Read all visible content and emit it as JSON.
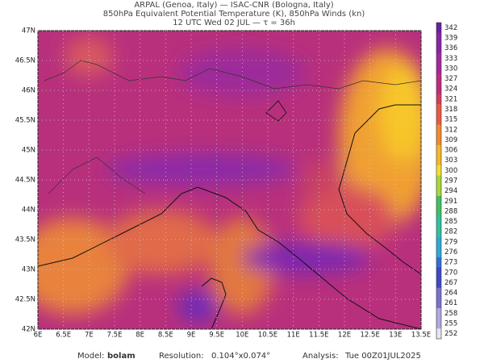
{
  "header": {
    "line1": "ARPAL (Genoa, Italy)  —  ISAC-CNR (Bologna, Italy)",
    "line2": "850hPa Equivalent Potential Temperature (K), 850hPa Winds (kn)",
    "line3": "12 UTC Wed 02 JUL  —  τ = 36h"
  },
  "map": {
    "lat_labels": [
      "47N",
      "46.5N",
      "46N",
      "45.5N",
      "45N",
      "44.5N",
      "44N",
      "43.5N",
      "43N",
      "42.5N",
      "42N"
    ],
    "lon_labels": [
      "6E",
      "6.5E",
      "7E",
      "7.5E",
      "8E",
      "8.5E",
      "9E",
      "9.5E",
      "10E",
      "10.5E",
      "11E",
      "11.5E",
      "12E",
      "12.5E",
      "13E",
      "13.5E"
    ]
  },
  "colorbar": {
    "labels": [
      "342",
      "339",
      "336",
      "333",
      "330",
      "327",
      "324",
      "321",
      "318",
      "315",
      "312",
      "309",
      "306",
      "303",
      "300",
      "297",
      "294",
      "291",
      "288",
      "285",
      "282",
      "279",
      "276",
      "273",
      "270",
      "267",
      "264",
      "261",
      "258",
      "255",
      "252"
    ]
  },
  "footer": {
    "model_label": "Model:",
    "model": "bolam",
    "resolution_label": "Resolution:",
    "resolution": "0.104°x0.074°",
    "analysis_label": "Analysis:",
    "analysis": "Tue 00Z01JUL2025"
  }
}
